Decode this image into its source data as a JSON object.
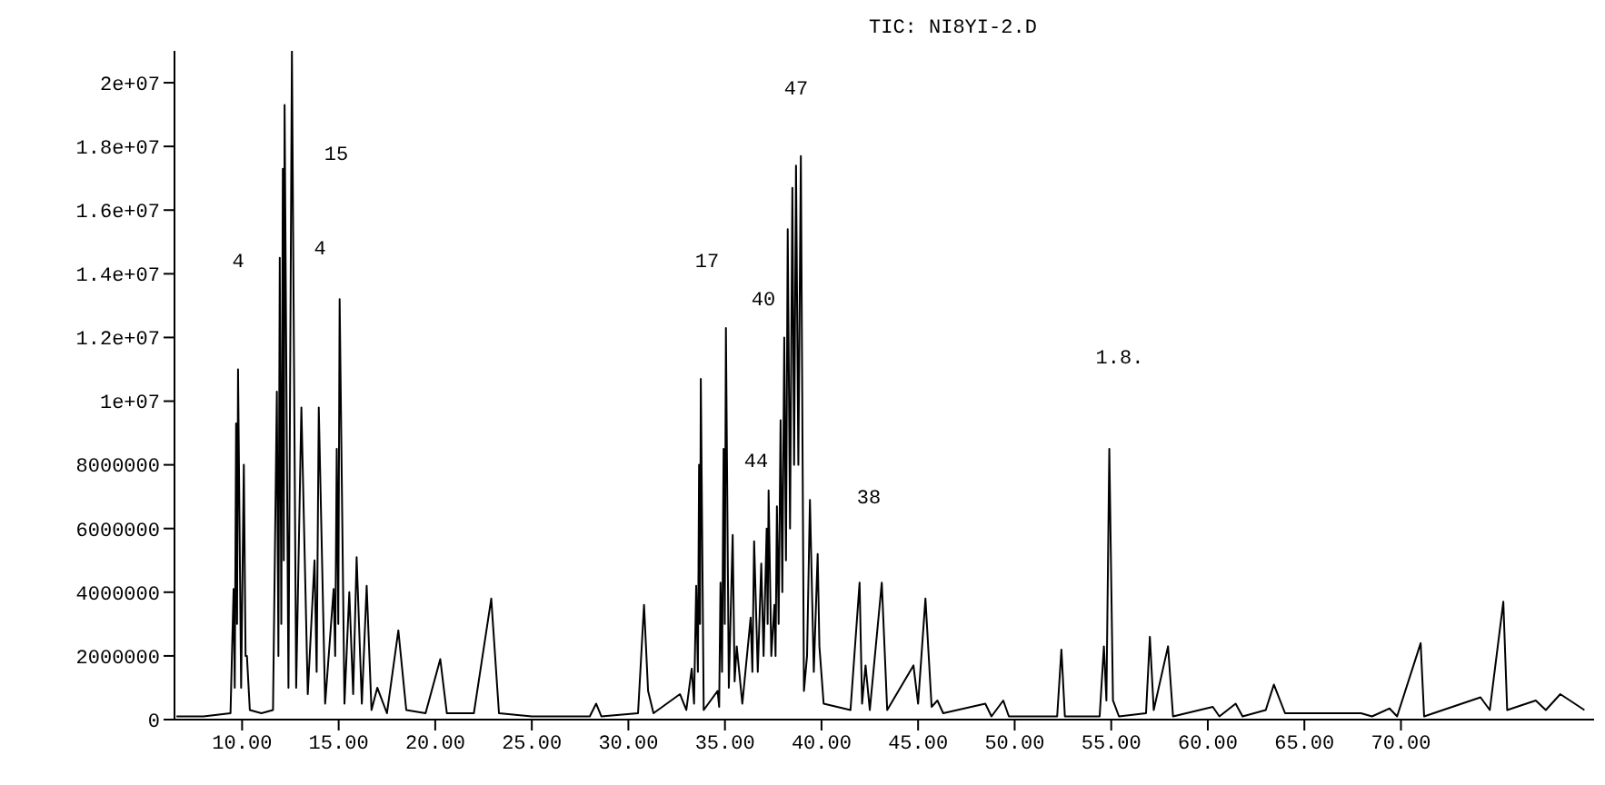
{
  "chart_data": {
    "type": "line",
    "title": "TIC: NI8YI-2.D",
    "annotations": [
      "4",
      "15",
      "4",
      "17",
      "40",
      "44",
      "47",
      "38",
      "1.8."
    ],
    "color": "#000000",
    "x": [
      6.6,
      8.0,
      9.4,
      9.56,
      9.62,
      9.69,
      9.74,
      9.79,
      9.95,
      10.09,
      10.18,
      10.25,
      10.4,
      11.0,
      11.6,
      11.8,
      11.88,
      11.95,
      12.03,
      12.11,
      12.16,
      12.2,
      12.4,
      12.58,
      12.8,
      13.07,
      13.4,
      13.75,
      13.86,
      13.97,
      14.3,
      14.74,
      14.82,
      14.9,
      14.98,
      15.05,
      15.3,
      15.55,
      15.75,
      15.93,
      16.2,
      16.45,
      16.7,
      17.0,
      17.5,
      18.09,
      18.5,
      19.5,
      20.26,
      20.6,
      22.0,
      22.9,
      23.3,
      25.0,
      28.0,
      28.33,
      28.6,
      30.5,
      30.81,
      31.02,
      31.3,
      32.67,
      33.0,
      33.28,
      33.4,
      33.51,
      33.6,
      33.66,
      33.71,
      33.75,
      33.9,
      34.62,
      34.7,
      34.77,
      34.85,
      34.93,
      34.99,
      35.05,
      35.2,
      35.4,
      35.5,
      35.61,
      35.9,
      36.33,
      36.42,
      36.51,
      36.7,
      36.88,
      37.0,
      37.16,
      37.21,
      37.26,
      37.4,
      37.56,
      37.62,
      37.69,
      37.78,
      37.88,
      37.97,
      38.07,
      38.16,
      38.25,
      38.37,
      38.49,
      38.58,
      38.68,
      38.8,
      38.93,
      39.09,
      39.25,
      39.4,
      39.6,
      39.8,
      39.89,
      40.11,
      41.5,
      41.97,
      42.1,
      42.28,
      42.5,
      43.12,
      43.4,
      44.76,
      45.0,
      45.38,
      45.7,
      46.0,
      46.3,
      48.48,
      48.8,
      49.41,
      49.7,
      52.2,
      52.42,
      52.6,
      54.4,
      54.62,
      54.75,
      54.9,
      55.09,
      55.4,
      56.8,
      57.0,
      57.2,
      57.94,
      58.2,
      60.26,
      60.6,
      61.44,
      61.8,
      63.0,
      63.42,
      64.0,
      67.93,
      68.5,
      69.41,
      69.8,
      71.02,
      71.2,
      74.12,
      74.6,
      75.3,
      75.5,
      76.98,
      77.5,
      78.25,
      79.5
    ],
    "values": [
      100000,
      100000,
      200000,
      4100000,
      1000000,
      9300000,
      3000000,
      11000000,
      1000000,
      8000000,
      2000000,
      2000000,
      300000,
      200000,
      300000,
      10300000,
      2000000,
      14500000,
      3000000,
      17300000,
      5000000,
      19300000,
      1000000,
      21000000,
      1000000,
      9800000,
      800000,
      5000000,
      1500000,
      9800000,
      500000,
      4100000,
      2000000,
      8500000,
      3000000,
      13200000,
      500000,
      4000000,
      800000,
      5100000,
      500000,
      4200000,
      300000,
      1000000,
      200000,
      2800000,
      300000,
      200000,
      1900000,
      200000,
      200000,
      3800000,
      200000,
      100000,
      100000,
      500000,
      100000,
      200000,
      3600000,
      900000,
      200000,
      800000,
      300000,
      1600000,
      500000,
      4200000,
      1500000,
      8000000,
      3000000,
      10700000,
      300000,
      900000,
      400000,
      4300000,
      1500000,
      8500000,
      3000000,
      12300000,
      1000000,
      5800000,
      1200000,
      2300000,
      500000,
      3200000,
      1500000,
      5600000,
      1500000,
      4900000,
      2000000,
      6000000,
      3000000,
      7200000,
      2000000,
      3600000,
      2000000,
      6700000,
      3000000,
      9400000,
      4000000,
      12000000,
      5000000,
      15400000,
      6000000,
      16700000,
      8000000,
      17400000,
      8000000,
      17700000,
      900000,
      2000000,
      6900000,
      1500000,
      5200000,
      2300000,
      500000,
      300000,
      4300000,
      500000,
      1700000,
      300000,
      4300000,
      300000,
      1700000,
      500000,
      3800000,
      400000,
      600000,
      200000,
      500000,
      100000,
      600000,
      100000,
      100000,
      2200000,
      100000,
      100000,
      2300000,
      600000,
      8500000,
      600000,
      100000,
      200000,
      2600000,
      300000,
      2300000,
      100000,
      400000,
      100000,
      500000,
      100000,
      300000,
      1100000,
      200000,
      200000,
      100000,
      350000,
      100000,
      2400000,
      100000,
      700000,
      300000,
      3700000,
      300000,
      600000,
      300000,
      800000,
      300000
    ],
    "xlim": [
      6.5,
      80
    ],
    "xticks": [
      {
        "value": 10,
        "label": "10.00"
      },
      {
        "value": 15,
        "label": "15.00"
      },
      {
        "value": 20,
        "label": "20.00"
      },
      {
        "value": 25,
        "label": "25.00"
      },
      {
        "value": 30,
        "label": "30.00"
      },
      {
        "value": 35,
        "label": "35.00"
      },
      {
        "value": 40,
        "label": "40.00"
      },
      {
        "value": 45,
        "label": "45.00"
      },
      {
        "value": 50,
        "label": "50.00"
      },
      {
        "value": 55,
        "label": "55.00"
      },
      {
        "value": 60,
        "label": "60.00"
      },
      {
        "value": 65,
        "label": "65.00"
      },
      {
        "value": 70,
        "label": "70.00"
      }
    ],
    "ylim": [
      0,
      21000000
    ],
    "yticks": [
      0,
      2000000,
      4000000,
      6000000,
      8000000,
      {
        "value": 10000000,
        "label": "1e+07"
      },
      {
        "value": 12000000,
        "label": "1.2e+07"
      },
      {
        "value": 14000000,
        "label": "1.4e+07"
      },
      {
        "value": 16000000,
        "label": "1.6e+07"
      },
      {
        "value": 18000000,
        "label": "1.8e+07"
      },
      {
        "value": 20000000,
        "label": "2e+07"
      }
    ]
  }
}
